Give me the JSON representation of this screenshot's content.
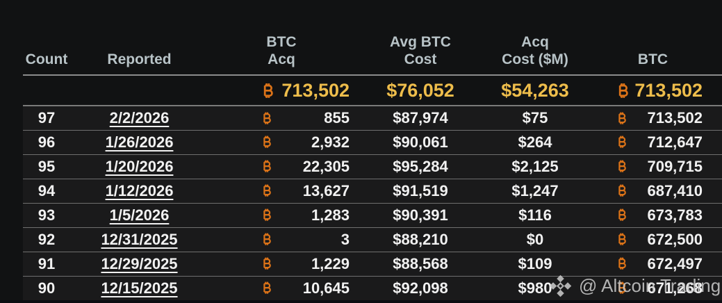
{
  "theme": {
    "background": "#111213",
    "row_background": "#1a1a1b",
    "header_text_color": "#b8c3c7",
    "row_text_color": "#f1f1f1",
    "bitcoin_orange": "#dc7318",
    "summary_gold": "#eebd4b",
    "row_border_color": "#6f6f6f",
    "header_border_color": "#8c8c8c",
    "watermark_color": "#c9c9c9"
  },
  "table": {
    "headers": [
      "Count",
      "Reported",
      "BTC\nAcq",
      "Avg BTC\nCost",
      "Acq\nCost ($M)",
      "BTC"
    ],
    "totals": {
      "btc_acq": "713,502",
      "avg_btc_cost": "$76,052",
      "acq_cost_m": "$54,263",
      "btc_total": "713,502"
    },
    "rows": [
      {
        "count": "97",
        "reported": "2/2/2026",
        "btc_acq": "855",
        "avg_btc_cost": "$87,974",
        "acq_cost_m": "$75",
        "btc_total": "713,502"
      },
      {
        "count": "96",
        "reported": "1/26/2026",
        "btc_acq": "2,932",
        "avg_btc_cost": "$90,061",
        "acq_cost_m": "$264",
        "btc_total": "712,647"
      },
      {
        "count": "95",
        "reported": "1/20/2026",
        "btc_acq": "22,305",
        "avg_btc_cost": "$95,284",
        "acq_cost_m": "$2,125",
        "btc_total": "709,715"
      },
      {
        "count": "94",
        "reported": "1/12/2026",
        "btc_acq": "13,627",
        "avg_btc_cost": "$91,519",
        "acq_cost_m": "$1,247",
        "btc_total": "687,410"
      },
      {
        "count": "93",
        "reported": "1/5/2026",
        "btc_acq": "1,283",
        "avg_btc_cost": "$90,391",
        "acq_cost_m": "$116",
        "btc_total": "673,783"
      },
      {
        "count": "92",
        "reported": "12/31/2025",
        "btc_acq": "3",
        "avg_btc_cost": "$88,210",
        "acq_cost_m": "$0",
        "btc_total": "672,500"
      },
      {
        "count": "91",
        "reported": "12/29/2025",
        "btc_acq": "1,229",
        "avg_btc_cost": "$88,568",
        "acq_cost_m": "$109",
        "btc_total": "672,497"
      },
      {
        "count": "90",
        "reported": "12/15/2025",
        "btc_acq": "10,645",
        "avg_btc_cost": "$92,098",
        "acq_cost_m": "$980",
        "btc_total": "671,268"
      }
    ]
  },
  "watermark": {
    "text": "@ Altcoin Trading",
    "icon": "diamond-logo-icon"
  }
}
